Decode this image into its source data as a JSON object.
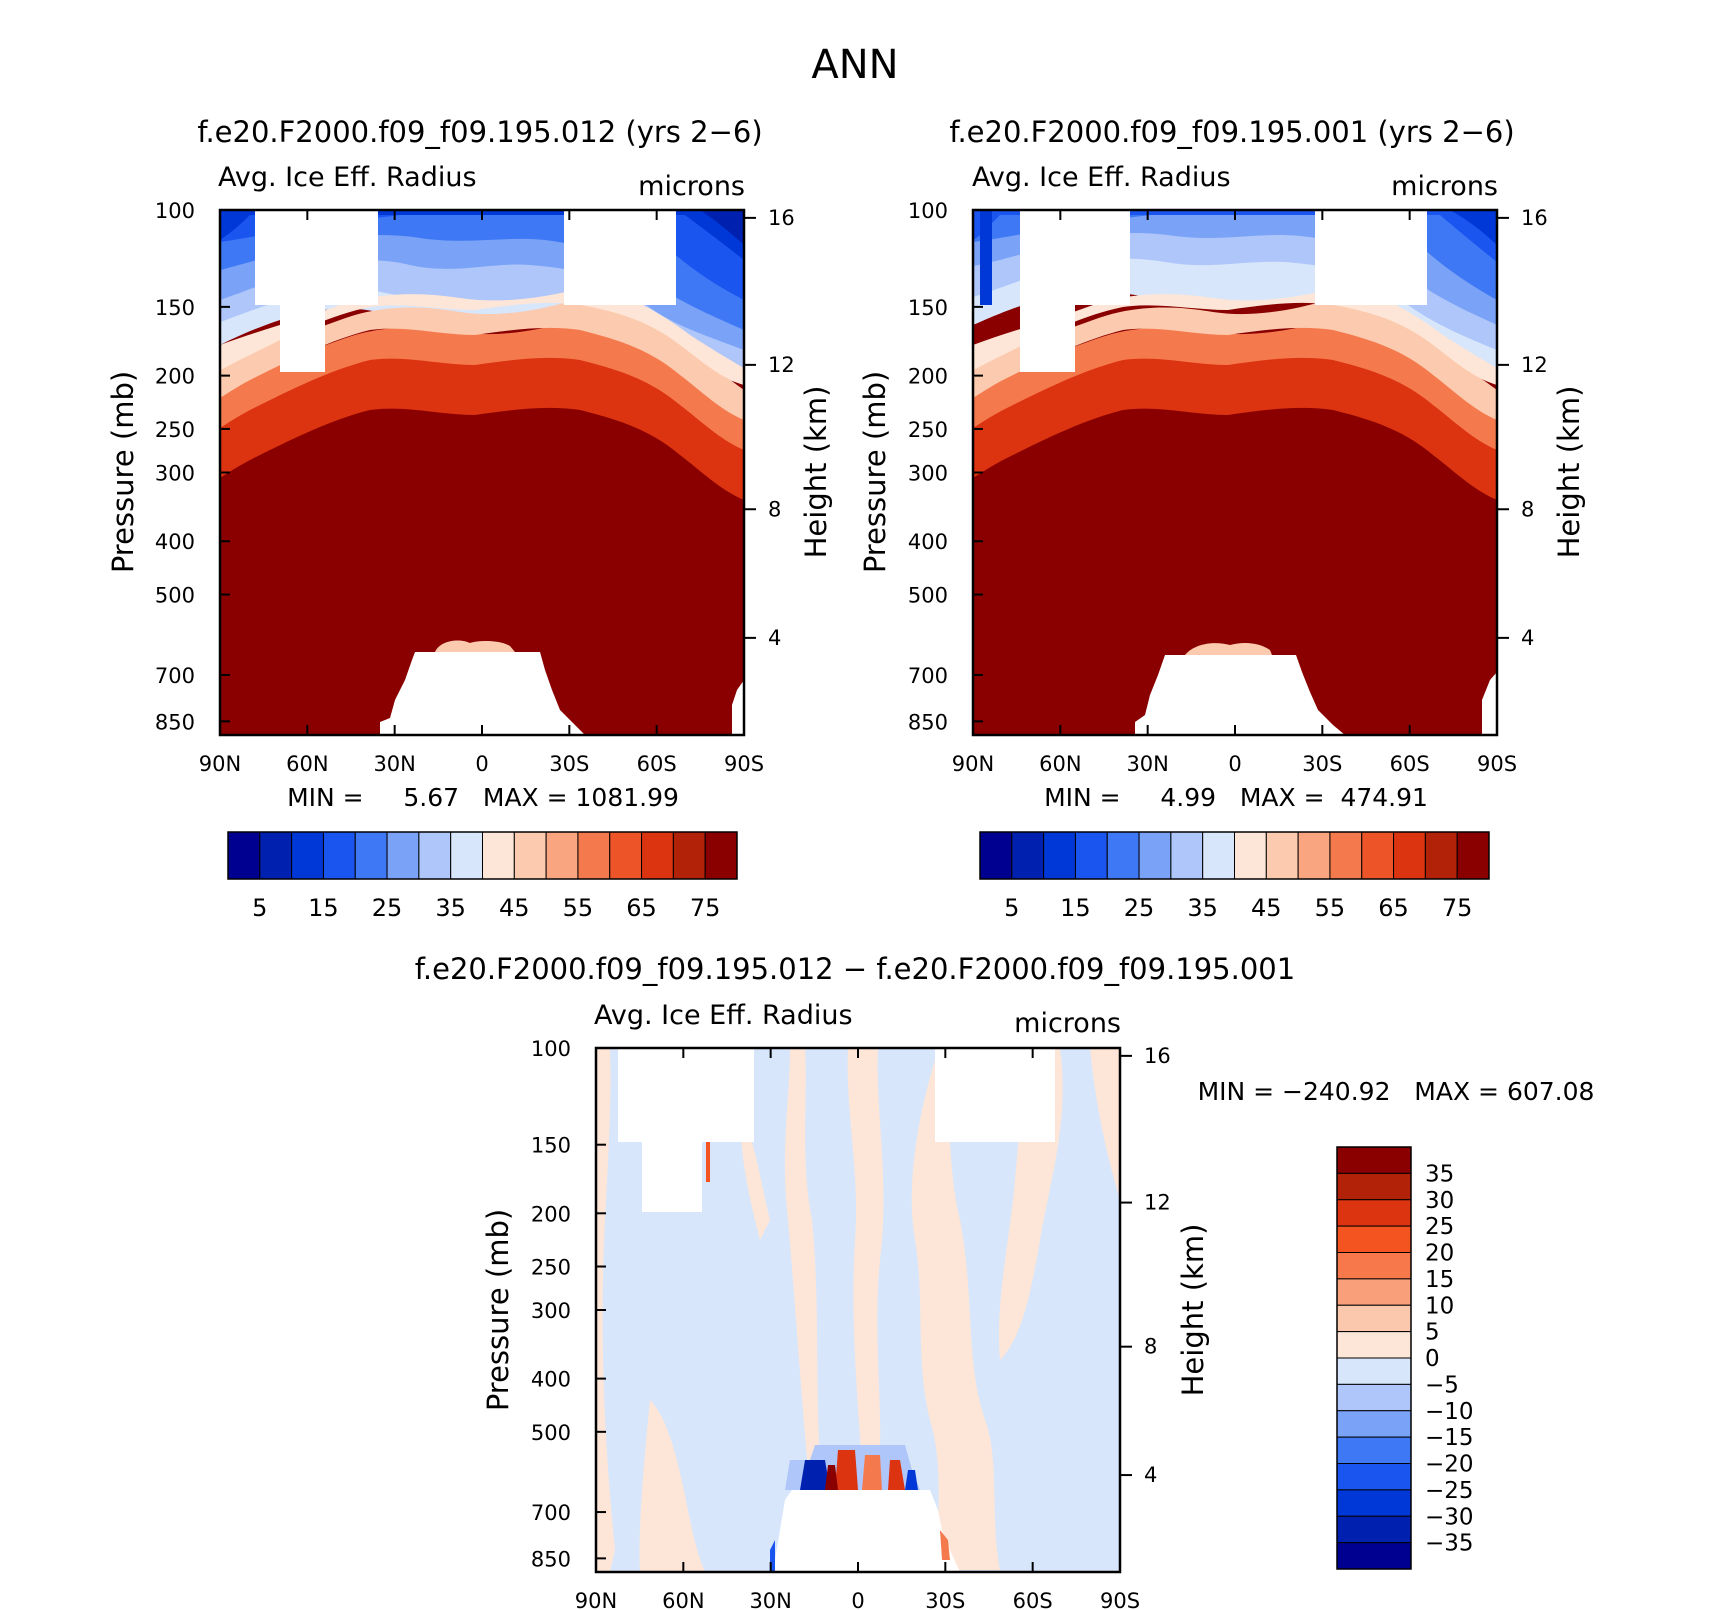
{
  "page": {
    "title": "ANN"
  },
  "chart_data": [
    {
      "type": "contour",
      "title": "f.e20.F2000.f09_f09.195.012 (yrs 2−6)",
      "left_label": "Avg. Ice Eff. Radius",
      "right_label": "microns",
      "ylabel": "Pressure (mb)",
      "y2label": "Height (km)",
      "x_ticks": [
        "90N",
        "60N",
        "30N",
        "0",
        "30S",
        "60S",
        "90S"
      ],
      "y_ticks": [
        "100",
        "150",
        "200",
        "250",
        "300",
        "400",
        "500",
        "700",
        "850"
      ],
      "y2_ticks": [
        "16",
        "12",
        "8",
        "4"
      ],
      "stats": "MIN =     5.67   MAX = 1081.99",
      "colorbar": {
        "labels": [
          "5",
          "15",
          "25",
          "35",
          "45",
          "55",
          "65",
          "75"
        ],
        "colors": [
          "#000090",
          "#0020b0",
          "#0038d8",
          "#1a55f0",
          "#3f78f5",
          "#7aa2f7",
          "#aec6fa",
          "#d7e6fb",
          "#fde6d7",
          "#fccaae",
          "#f9a580",
          "#f47a4e",
          "#ed5428",
          "#dc3310",
          "#b22208",
          "#8a0000"
        ]
      },
      "mins_at_top_of_field": "deep blue near 100 mb, white-masked regions aloft, dark red (>75) below 300 mb"
    },
    {
      "type": "contour",
      "title": "f.e20.F2000.f09_f09.195.001 (yrs 2−6)",
      "left_label": "Avg. Ice Eff. Radius",
      "right_label": "microns",
      "ylabel": "Pressure (mb)",
      "y2label": "Height (km)",
      "x_ticks": [
        "90N",
        "60N",
        "30N",
        "0",
        "30S",
        "60S",
        "90S"
      ],
      "y_ticks": [
        "100",
        "150",
        "200",
        "250",
        "300",
        "400",
        "500",
        "700",
        "850"
      ],
      "y2_ticks": [
        "16",
        "12",
        "8",
        "4"
      ],
      "stats": "MIN =     4.99   MAX =  474.91",
      "colorbar": {
        "labels": [
          "5",
          "15",
          "25",
          "35",
          "45",
          "55",
          "65",
          "75"
        ],
        "colors": [
          "#000090",
          "#0020b0",
          "#0038d8",
          "#1a55f0",
          "#3f78f5",
          "#7aa2f7",
          "#aec6fa",
          "#d7e6fb",
          "#fde6d7",
          "#fccaae",
          "#f9a580",
          "#f47a4e",
          "#ed5428",
          "#dc3310",
          "#b22208",
          "#8a0000"
        ]
      }
    },
    {
      "type": "contour",
      "title": "f.e20.F2000.f09_f09.195.012 − f.e20.F2000.f09_f09.195.001",
      "left_label": "Avg. Ice Eff. Radius",
      "right_label": "microns",
      "ylabel": "Pressure (mb)",
      "y2label": "Height (km)",
      "x_ticks": [
        "90N",
        "60N",
        "30N",
        "0",
        "30S",
        "60S",
        "90S"
      ],
      "y_ticks": [
        "100",
        "150",
        "200",
        "250",
        "300",
        "400",
        "500",
        "700",
        "850"
      ],
      "y2_ticks": [
        "16",
        "12",
        "8",
        "4"
      ],
      "stats": "MIN = −240.92   MAX = 607.08",
      "colorbar": {
        "labels": [
          "35",
          "30",
          "25",
          "20",
          "15",
          "10",
          "5",
          "0",
          "−5",
          "−10",
          "−15",
          "−20",
          "−25",
          "−30",
          "−35"
        ],
        "colors": [
          "#8a0000",
          "#b22208",
          "#dc3310",
          "#f4541f",
          "#f7784a",
          "#f9a07b",
          "#fcc8ad",
          "#fde6d7",
          "#d7e6fb",
          "#aec6fa",
          "#7aa2f7",
          "#3f78f5",
          "#1a55f0",
          "#0038d8",
          "#0020b0",
          "#000090"
        ]
      }
    }
  ]
}
